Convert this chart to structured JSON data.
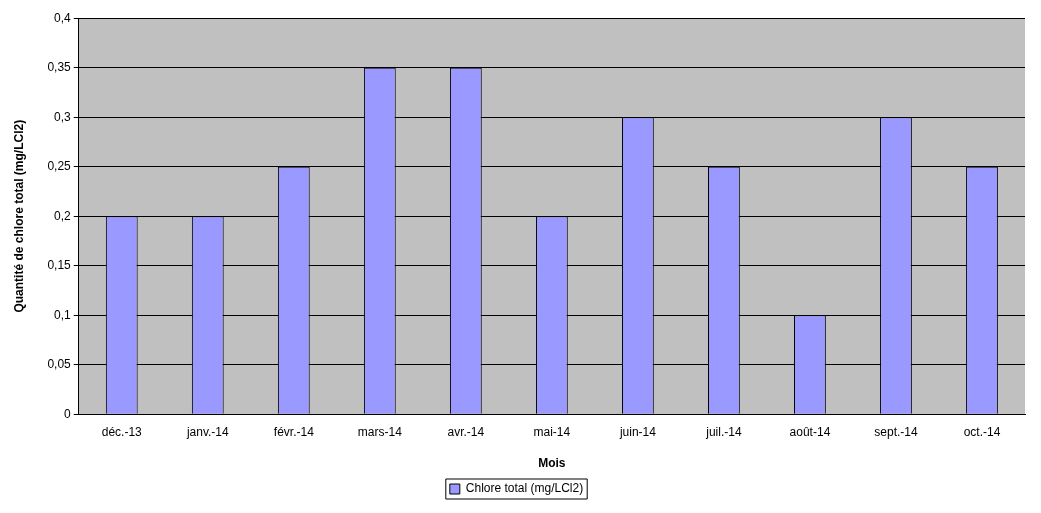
{
  "chart_data": {
    "type": "bar",
    "xlabel": "Mois",
    "ylabel": "Quantité de chlore total (mg/LCl2)",
    "categories": [
      "déc.-13",
      "janv.-14",
      "févr.-14",
      "mars-14",
      "avr.-14",
      "mai-14",
      "juin-14",
      "juil.-14",
      "août-14",
      "sept.-14",
      "oct.-14"
    ],
    "series": [
      {
        "name": "Chlore total (mg/LCl2)",
        "color": "#9999ff",
        "values": [
          0.2,
          0.2,
          0.25,
          0.35,
          0.35,
          0.2,
          0.3,
          0.25,
          0.1,
          0.3,
          0.25
        ]
      }
    ],
    "ylim": [
      0,
      0.4
    ],
    "yticks": [
      {
        "value": 0,
        "label": "0"
      },
      {
        "value": 0.05,
        "label": "0,05"
      },
      {
        "value": 0.1,
        "label": "0,1"
      },
      {
        "value": 0.15,
        "label": "0,15"
      },
      {
        "value": 0.2,
        "label": "0,2"
      },
      {
        "value": 0.25,
        "label": "0,25"
      },
      {
        "value": 0.3,
        "label": "0,3"
      },
      {
        "value": 0.35,
        "label": "0,35"
      },
      {
        "value": 0.4,
        "label": "0,4"
      }
    ],
    "grid": "y",
    "legend": "bottom"
  }
}
